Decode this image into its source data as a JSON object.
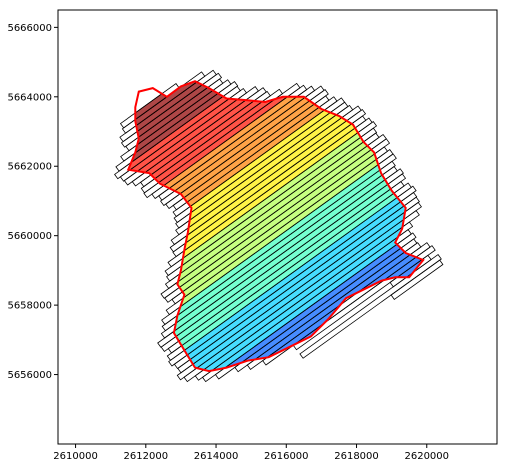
{
  "chart_data": {
    "type": "map",
    "title": "",
    "xlabel": "",
    "ylabel": "",
    "xlim": [
      2609500,
      2622000
    ],
    "ylim": [
      5654000,
      5666500
    ],
    "xticks": [
      2610000,
      2612000,
      2614000,
      2616000,
      2618000,
      2620000
    ],
    "yticks": [
      5656000,
      5658000,
      5660000,
      5662000,
      5664000,
      5666000
    ],
    "xtick_labels": [
      "2610000",
      "2612000",
      "2614000",
      "2616000",
      "2618000",
      "2620000"
    ],
    "ytick_labels": [
      "5656000",
      "5658000",
      "5660000",
      "5662000",
      "5664000",
      "5666000"
    ],
    "grid": false,
    "outline_color": "#ff0000",
    "strip_outline_color": "#000000",
    "colormap": "jet",
    "color_bands": [
      {
        "index": 0,
        "color": "#00008f"
      },
      {
        "index": 1,
        "color": "#0000ff"
      },
      {
        "index": 2,
        "color": "#0060ff"
      },
      {
        "index": 3,
        "color": "#00cfff"
      },
      {
        "index": 4,
        "color": "#40ffbf"
      },
      {
        "index": 5,
        "color": "#b0ff50"
      },
      {
        "index": 6,
        "color": "#ffef00"
      },
      {
        "index": 7,
        "color": "#ff8000"
      },
      {
        "index": 8,
        "color": "#ff1000"
      },
      {
        "index": 9,
        "color": "#8f0000"
      }
    ],
    "strip_angle_deg": 36,
    "strip_count": 68,
    "outline_polygon": [
      [
        2611800,
        5664150
      ],
      [
        2612200,
        5664250
      ],
      [
        2612600,
        5664000
      ],
      [
        2613000,
        5664300
      ],
      [
        2613400,
        5664450
      ],
      [
        2613800,
        5664250
      ],
      [
        2614300,
        5663950
      ],
      [
        2614900,
        5663900
      ],
      [
        2615400,
        5663850
      ],
      [
        2615900,
        5664000
      ],
      [
        2616500,
        5664000
      ],
      [
        2617000,
        5663650
      ],
      [
        2617500,
        5663450
      ],
      [
        2617900,
        5663200
      ],
      [
        2618200,
        5662700
      ],
      [
        2618500,
        5662400
      ],
      [
        2618700,
        5661800
      ],
      [
        2619000,
        5661300
      ],
      [
        2619400,
        5660800
      ],
      [
        2619300,
        5660200
      ],
      [
        2619100,
        5659800
      ],
      [
        2619400,
        5659500
      ],
      [
        2619900,
        5659300
      ],
      [
        2619500,
        5658800
      ],
      [
        2619100,
        5658800
      ],
      [
        2618700,
        5658700
      ],
      [
        2618300,
        5658500
      ],
      [
        2617700,
        5658200
      ],
      [
        2617200,
        5657600
      ],
      [
        2616700,
        5657100
      ],
      [
        2616100,
        5656800
      ],
      [
        2615500,
        5656500
      ],
      [
        2614900,
        5656400
      ],
      [
        2614300,
        5656200
      ],
      [
        2613800,
        5656100
      ],
      [
        2613400,
        5656200
      ],
      [
        2613100,
        5656700
      ],
      [
        2612800,
        5657200
      ],
      [
        2612900,
        5657700
      ],
      [
        2613100,
        5658300
      ],
      [
        2612900,
        5658600
      ],
      [
        2613000,
        5659000
      ],
      [
        2613100,
        5659600
      ],
      [
        2613200,
        5660100
      ],
      [
        2613300,
        5660800
      ],
      [
        2613000,
        5661200
      ],
      [
        2612400,
        5661500
      ],
      [
        2612100,
        5661800
      ],
      [
        2611500,
        5661900
      ],
      [
        2611700,
        5662400
      ],
      [
        2611800,
        5662800
      ],
      [
        2611700,
        5663300
      ],
      [
        2611700,
        5663700
      ]
    ]
  }
}
